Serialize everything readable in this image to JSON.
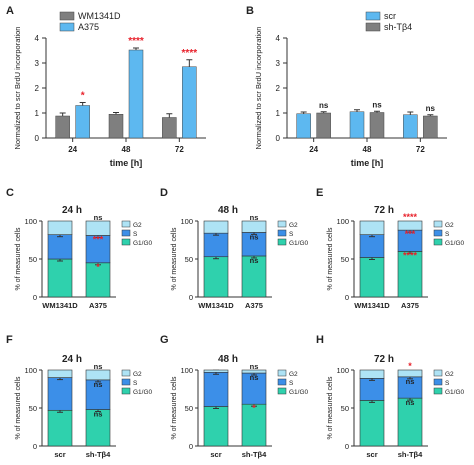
{
  "figure": {
    "colors": {
      "gray": "#7f7f7f",
      "blue": "#5db8f0",
      "green": "#2fd1ad",
      "darkblue": "#3c8fe8",
      "lightblue": "#aee3f5",
      "star": "#e8202a"
    }
  },
  "chart_data": [
    {
      "panel": "A",
      "type": "bar",
      "ylabel": "Normalized to scr BrdU incorporation",
      "xlabel": "time [h]",
      "categories": [
        "24",
        "48",
        "72"
      ],
      "ylim": [
        0,
        4
      ],
      "yticks": [
        "0",
        "1",
        "2",
        "3",
        "4"
      ],
      "series": [
        {
          "name": "WM1341D",
          "values": [
            0.88,
            0.95,
            0.82
          ],
          "errors": [
            0.12,
            0.07,
            0.15
          ]
        },
        {
          "name": "A375",
          "values": [
            1.3,
            3.52,
            2.85
          ],
          "errors": [
            0.12,
            0.08,
            0.28
          ]
        }
      ],
      "annotations": [
        {
          "category": 0,
          "series": 1,
          "text": "*"
        },
        {
          "category": 1,
          "series": 1,
          "text": "****"
        },
        {
          "category": 2,
          "series": 1,
          "text": "****"
        }
      ]
    },
    {
      "panel": "B",
      "type": "bar",
      "ylabel": "Normalized to scr BrdU incorporation",
      "xlabel": "time [h]",
      "categories": [
        "24",
        "48",
        "72"
      ],
      "ylim": [
        0,
        4
      ],
      "yticks": [
        "0",
        "1",
        "2",
        "3",
        "4"
      ],
      "series": [
        {
          "name": "scr",
          "values": [
            0.97,
            1.05,
            0.93
          ],
          "errors": [
            0.07,
            0.08,
            0.11
          ]
        },
        {
          "name": "sh-Tβ4",
          "values": [
            1.0,
            1.02,
            0.88
          ],
          "errors": [
            0.05,
            0.05,
            0.05
          ]
        }
      ],
      "annotations": [
        {
          "category": 0,
          "series": 1,
          "text": "ns"
        },
        {
          "category": 1,
          "series": 1,
          "text": "ns"
        },
        {
          "category": 2,
          "series": 1,
          "text": "ns"
        }
      ]
    },
    {
      "panel": "C",
      "type": "bar",
      "stacked": true,
      "title": "24 h",
      "ylabel": "% of measured cells",
      "ylim": [
        0,
        100
      ],
      "yticks": [
        "0",
        "50",
        "100"
      ],
      "categories": [
        "WM1341D",
        "A375"
      ],
      "legend": [
        "G2",
        "S",
        "G1/G0"
      ],
      "stack": [
        {
          "name": "G1/G0",
          "values": [
            50,
            45
          ]
        },
        {
          "name": "S",
          "values": [
            32,
            36
          ]
        },
        {
          "name": "G2",
          "values": [
            18,
            19
          ]
        }
      ],
      "annotations": [
        {
          "category": 1,
          "segment": "G2",
          "text": "ns"
        },
        {
          "category": 1,
          "segment": "S",
          "text": "***"
        },
        {
          "category": 1,
          "segment": "G1/G0",
          "text": "*"
        }
      ]
    },
    {
      "panel": "D",
      "type": "bar",
      "stacked": true,
      "title": "48 h",
      "ylabel": "% of measured cells",
      "ylim": [
        0,
        100
      ],
      "yticks": [
        "0",
        "50",
        "100"
      ],
      "categories": [
        "WM1341D",
        "A375"
      ],
      "legend": [
        "G2",
        "S",
        "G1/G0"
      ],
      "stack": [
        {
          "name": "G1/G0",
          "values": [
            53,
            54
          ]
        },
        {
          "name": "S",
          "values": [
            31,
            31
          ]
        },
        {
          "name": "G2",
          "values": [
            16,
            15
          ]
        }
      ],
      "annotations": [
        {
          "category": 1,
          "segment": "G2",
          "text": "ns"
        },
        {
          "category": 1,
          "segment": "S",
          "text": "ns"
        },
        {
          "category": 1,
          "segment": "G1/G0",
          "text": "ns"
        }
      ]
    },
    {
      "panel": "E",
      "type": "bar",
      "stacked": true,
      "title": "72 h",
      "ylabel": "% of measured cells",
      "ylim": [
        0,
        100
      ],
      "yticks": [
        "0",
        "50",
        "100"
      ],
      "categories": [
        "WM1341D",
        "A375"
      ],
      "legend": [
        "G2",
        "S",
        "G1/G0"
      ],
      "stack": [
        {
          "name": "G1/G0",
          "values": [
            52,
            60
          ]
        },
        {
          "name": "S",
          "values": [
            30,
            28
          ]
        },
        {
          "name": "G2",
          "values": [
            18,
            12
          ]
        }
      ],
      "annotations": [
        {
          "category": 1,
          "segment": "G2",
          "text": "****"
        },
        {
          "category": 1,
          "segment": "S",
          "text": "***"
        },
        {
          "category": 1,
          "segment": "G1/G0",
          "text": "****"
        }
      ]
    },
    {
      "panel": "F",
      "type": "bar",
      "stacked": true,
      "title": "24 h",
      "ylabel": "% of measured cells",
      "ylim": [
        0,
        100
      ],
      "yticks": [
        "0",
        "50",
        "100"
      ],
      "categories": [
        "scr",
        "sh-Tβ4"
      ],
      "legend": [
        "G2",
        "S",
        "G1/G0"
      ],
      "stack": [
        {
          "name": "G1/G0",
          "values": [
            47,
            48
          ]
        },
        {
          "name": "S",
          "values": [
            43,
            39
          ]
        },
        {
          "name": "G2",
          "values": [
            10,
            13
          ]
        }
      ],
      "annotations": [
        {
          "category": 1,
          "segment": "G2",
          "text": "ns"
        },
        {
          "category": 1,
          "segment": "S",
          "text": "ns"
        },
        {
          "category": 1,
          "segment": "G1/G0",
          "text": "ns"
        }
      ]
    },
    {
      "panel": "G",
      "type": "bar",
      "stacked": true,
      "title": "48 h",
      "ylabel": "% of measured cells",
      "ylim": [
        0,
        100
      ],
      "yticks": [
        "0",
        "50",
        "100"
      ],
      "categories": [
        "scr",
        "sh-Tβ4"
      ],
      "legend": [
        "G2",
        "S",
        "G1/G0"
      ],
      "stack": [
        {
          "name": "G1/G0",
          "values": [
            52,
            55
          ]
        },
        {
          "name": "S",
          "values": [
            45,
            41
          ]
        },
        {
          "name": "G2",
          "values": [
            3,
            4
          ]
        }
      ],
      "annotations": [
        {
          "category": 1,
          "segment": "G2",
          "text": "ns"
        },
        {
          "category": 1,
          "segment": "S",
          "text": "ns"
        },
        {
          "category": 1,
          "segment": "G1/G0",
          "text": "*"
        }
      ]
    },
    {
      "panel": "H",
      "type": "bar",
      "stacked": true,
      "title": "72 h",
      "ylabel": "% of measured cells",
      "ylim": [
        0,
        100
      ],
      "yticks": [
        "0",
        "50",
        "100"
      ],
      "categories": [
        "scr",
        "sh-Tβ4"
      ],
      "legend": [
        "G2",
        "S",
        "G1/G0"
      ],
      "stack": [
        {
          "name": "G1/G0",
          "values": [
            60,
            63
          ]
        },
        {
          "name": "S",
          "values": [
            29,
            28
          ]
        },
        {
          "name": "G2",
          "values": [
            11,
            9
          ]
        }
      ],
      "annotations": [
        {
          "category": 1,
          "segment": "G2",
          "text": "*"
        },
        {
          "category": 1,
          "segment": "S",
          "text": "ns"
        },
        {
          "category": 1,
          "segment": "G1/G0",
          "text": "ns"
        }
      ]
    }
  ]
}
